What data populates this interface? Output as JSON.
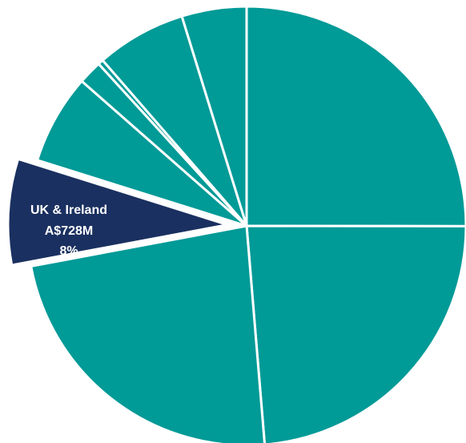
{
  "chart_data": {
    "type": "pie",
    "title": "",
    "slices": [
      {
        "label": "",
        "value": 25.7,
        "color": "#009A97"
      },
      {
        "label": "",
        "value": 24.3,
        "color": "#009A97"
      },
      {
        "label": "",
        "value": 24.0,
        "color": "#009A97"
      },
      {
        "label": "UK & Ireland",
        "value": 8,
        "amount": "A$728M",
        "percent": "8%",
        "color": "#1A3060",
        "highlighted": true
      },
      {
        "label": "",
        "value": 6.8,
        "color": "#009A97"
      },
      {
        "label": "",
        "value": 1.8,
        "color": "#009A97"
      },
      {
        "label": "",
        "value": 0.4,
        "color": "#009A97"
      },
      {
        "label": "",
        "value": 6.8,
        "color": "#009A97"
      },
      {
        "label": "",
        "value": 4.9,
        "color": "#009A97"
      }
    ]
  },
  "highlight": {
    "name": "UK & Ireland",
    "amount": "A$728M",
    "percent": "8%"
  }
}
